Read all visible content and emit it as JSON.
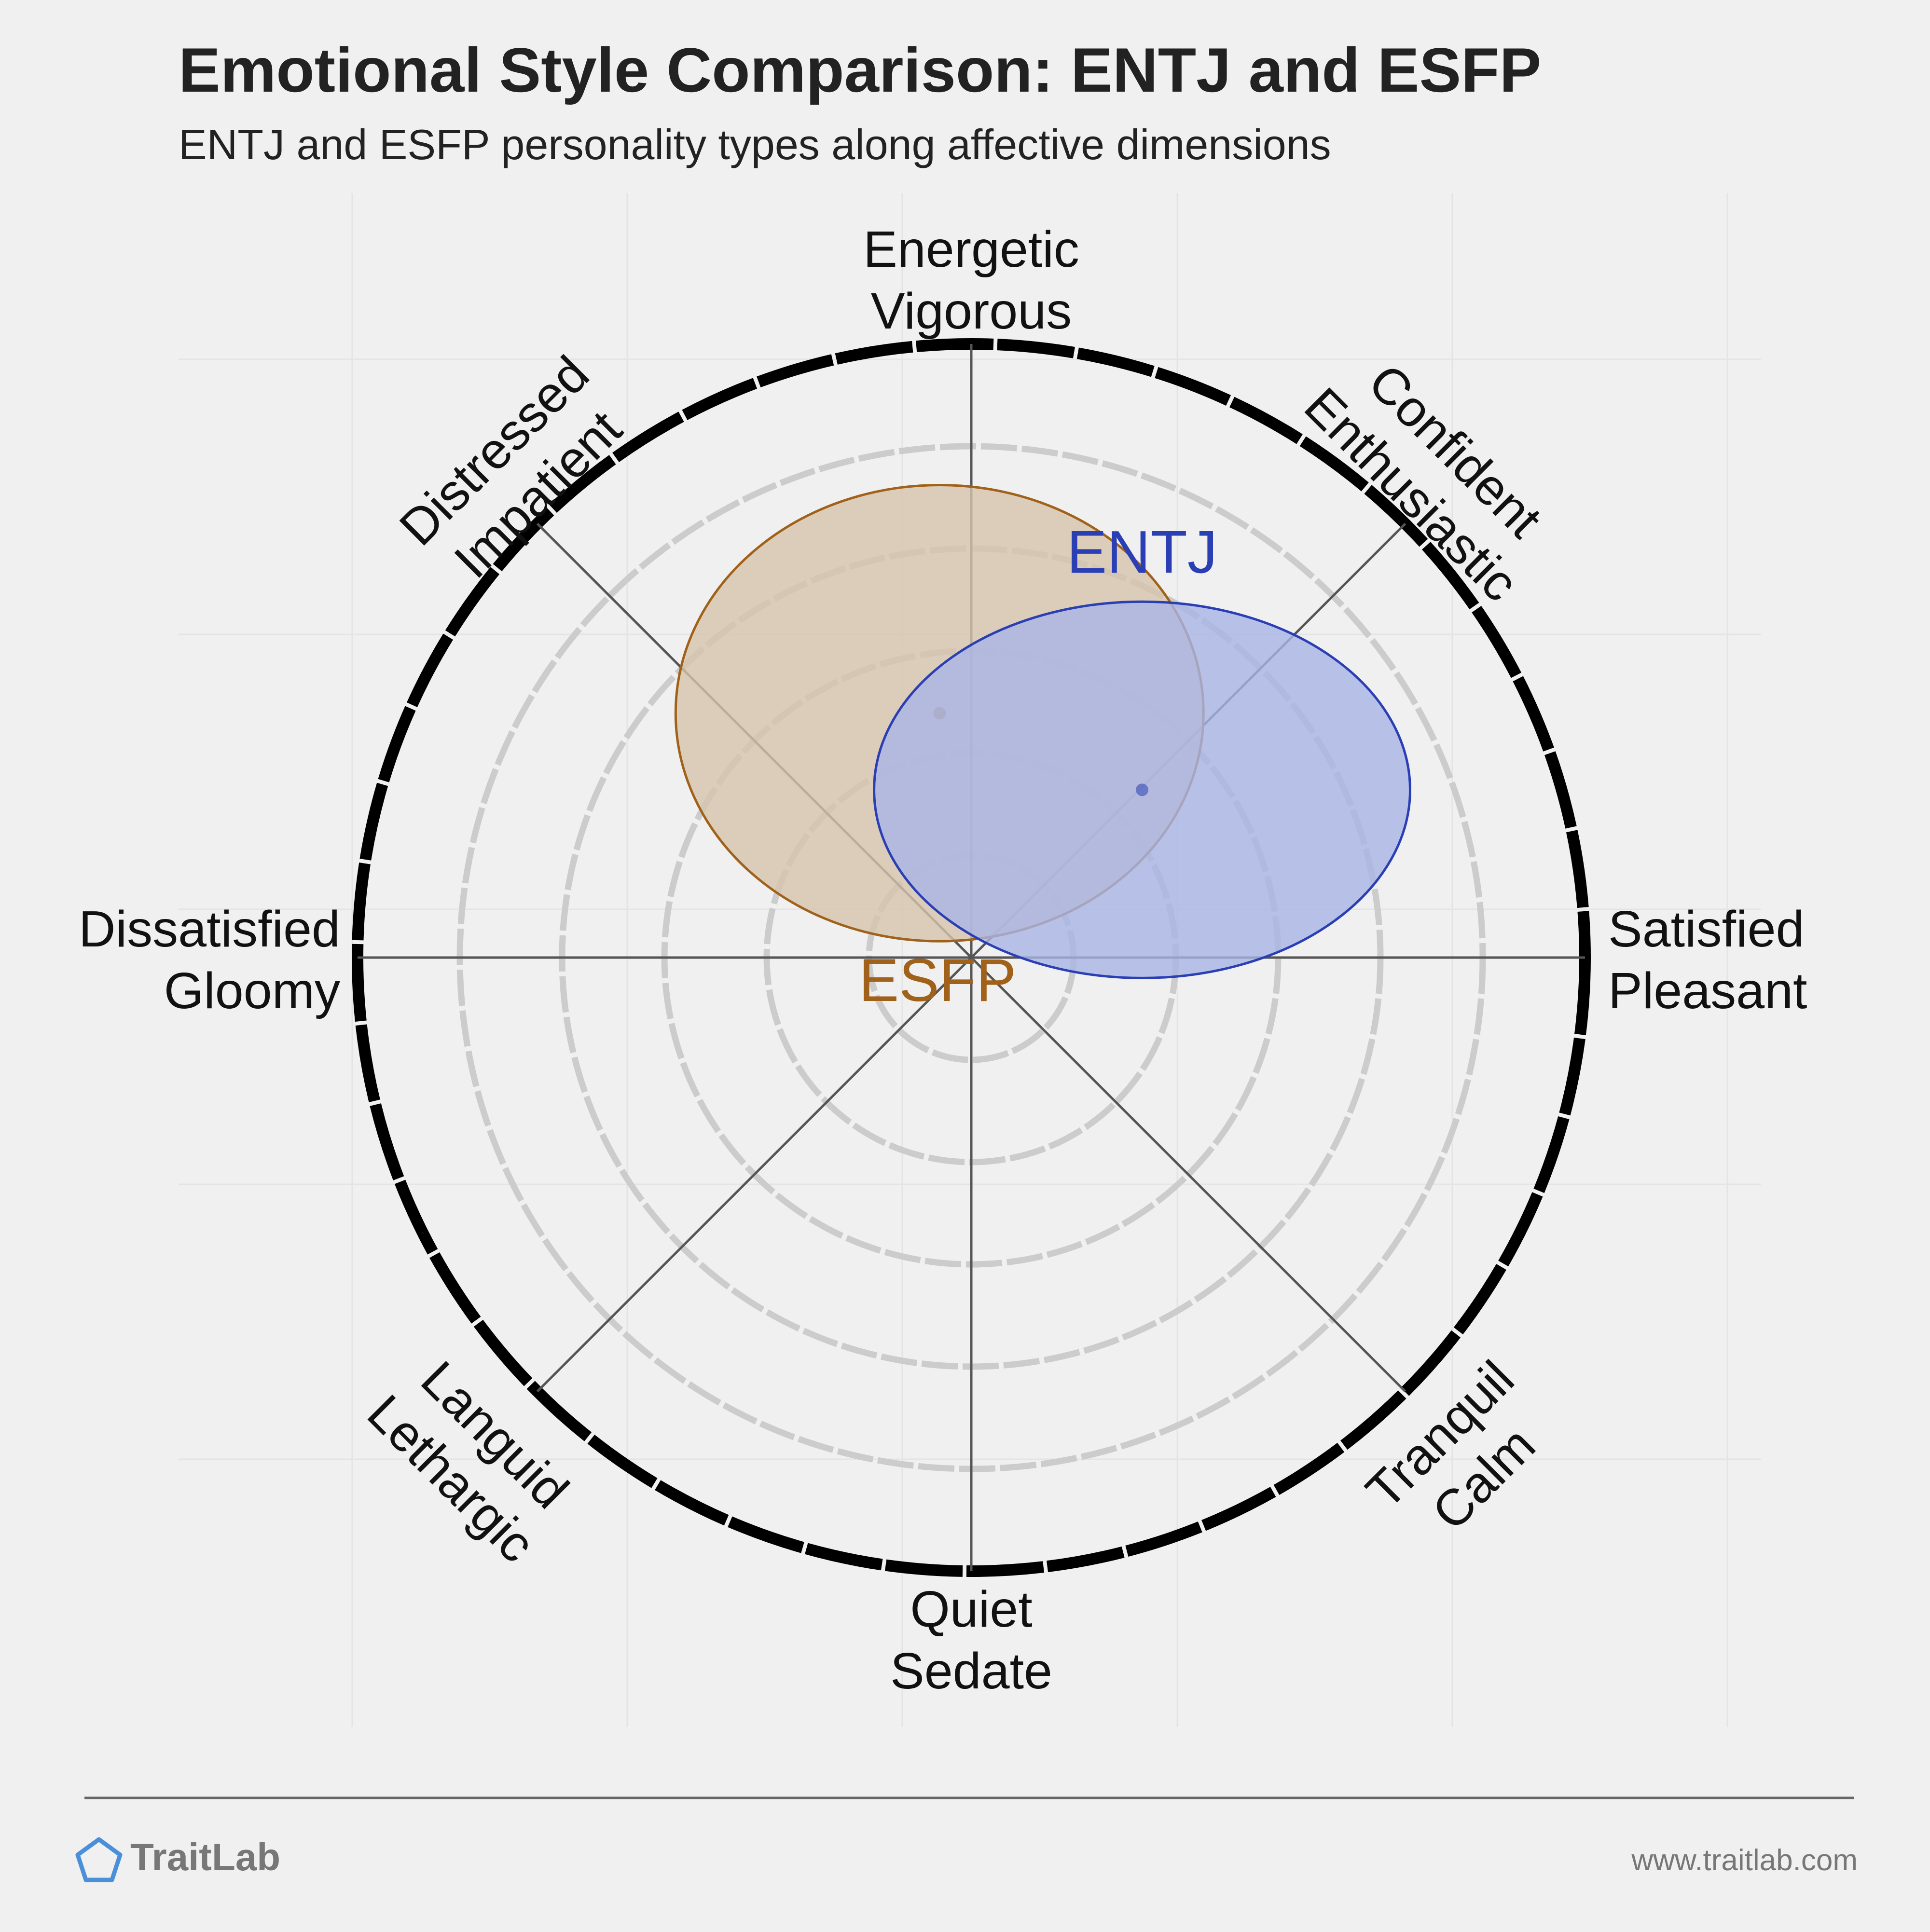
{
  "header": {
    "title": "Emotional Style Comparison: ENTJ and ESFP",
    "subtitle": "ENTJ and ESFP personality types along affective dimensions"
  },
  "footer": {
    "brand": "TraitLab",
    "url": "www.traitlab.com",
    "logo_icon": "pentagon-icon"
  },
  "chart_data": {
    "type": "scatter",
    "title": "Emotional Style Comparison: ENTJ and ESFP",
    "subtitle": "ENTJ and ESFP personality types along affective dimensions",
    "x_axis": {
      "negative": [
        "Dissatisfied",
        "Gloomy"
      ],
      "positive": [
        "Satisfied",
        "Pleasant"
      ]
    },
    "y_axis": {
      "negative": [
        "Quiet",
        "Sedate"
      ],
      "positive": [
        "Energetic",
        "Vigorous"
      ]
    },
    "axes": [
      {
        "id": "energetic",
        "lines": [
          "Energetic",
          "Vigorous"
        ]
      },
      {
        "id": "confident",
        "lines": [
          "Confident",
          "Enthusiastic"
        ]
      },
      {
        "id": "satisfied",
        "lines": [
          "Satisfied",
          "Pleasant"
        ]
      },
      {
        "id": "tranquil",
        "lines": [
          "Tranquil",
          "Calm"
        ]
      },
      {
        "id": "quiet",
        "lines": [
          "Quiet",
          "Sedate"
        ]
      },
      {
        "id": "languid",
        "lines": [
          "Languid",
          "Lethargic"
        ]
      },
      {
        "id": "dissatisfied",
        "lines": [
          "Dissatisfied",
          "Gloomy"
        ]
      },
      {
        "id": "distressed",
        "lines": [
          "Distressed",
          "Impatient"
        ]
      }
    ],
    "range": [
      -6,
      6
    ],
    "grid": true,
    "series": [
      {
        "name": "ENTJ",
        "color": "#2b3fb5",
        "fill": "#a9b5e6",
        "center": {
          "x": 1.67,
          "y": 1.64
        },
        "spread": {
          "x": 2.62,
          "y": 1.84
        }
      },
      {
        "name": "ESFP",
        "color": "#a0621a",
        "fill": "#d7c3ac",
        "center": {
          "x": -0.31,
          "y": 2.39
        },
        "spread": {
          "x": 2.58,
          "y": 2.23
        }
      }
    ]
  }
}
